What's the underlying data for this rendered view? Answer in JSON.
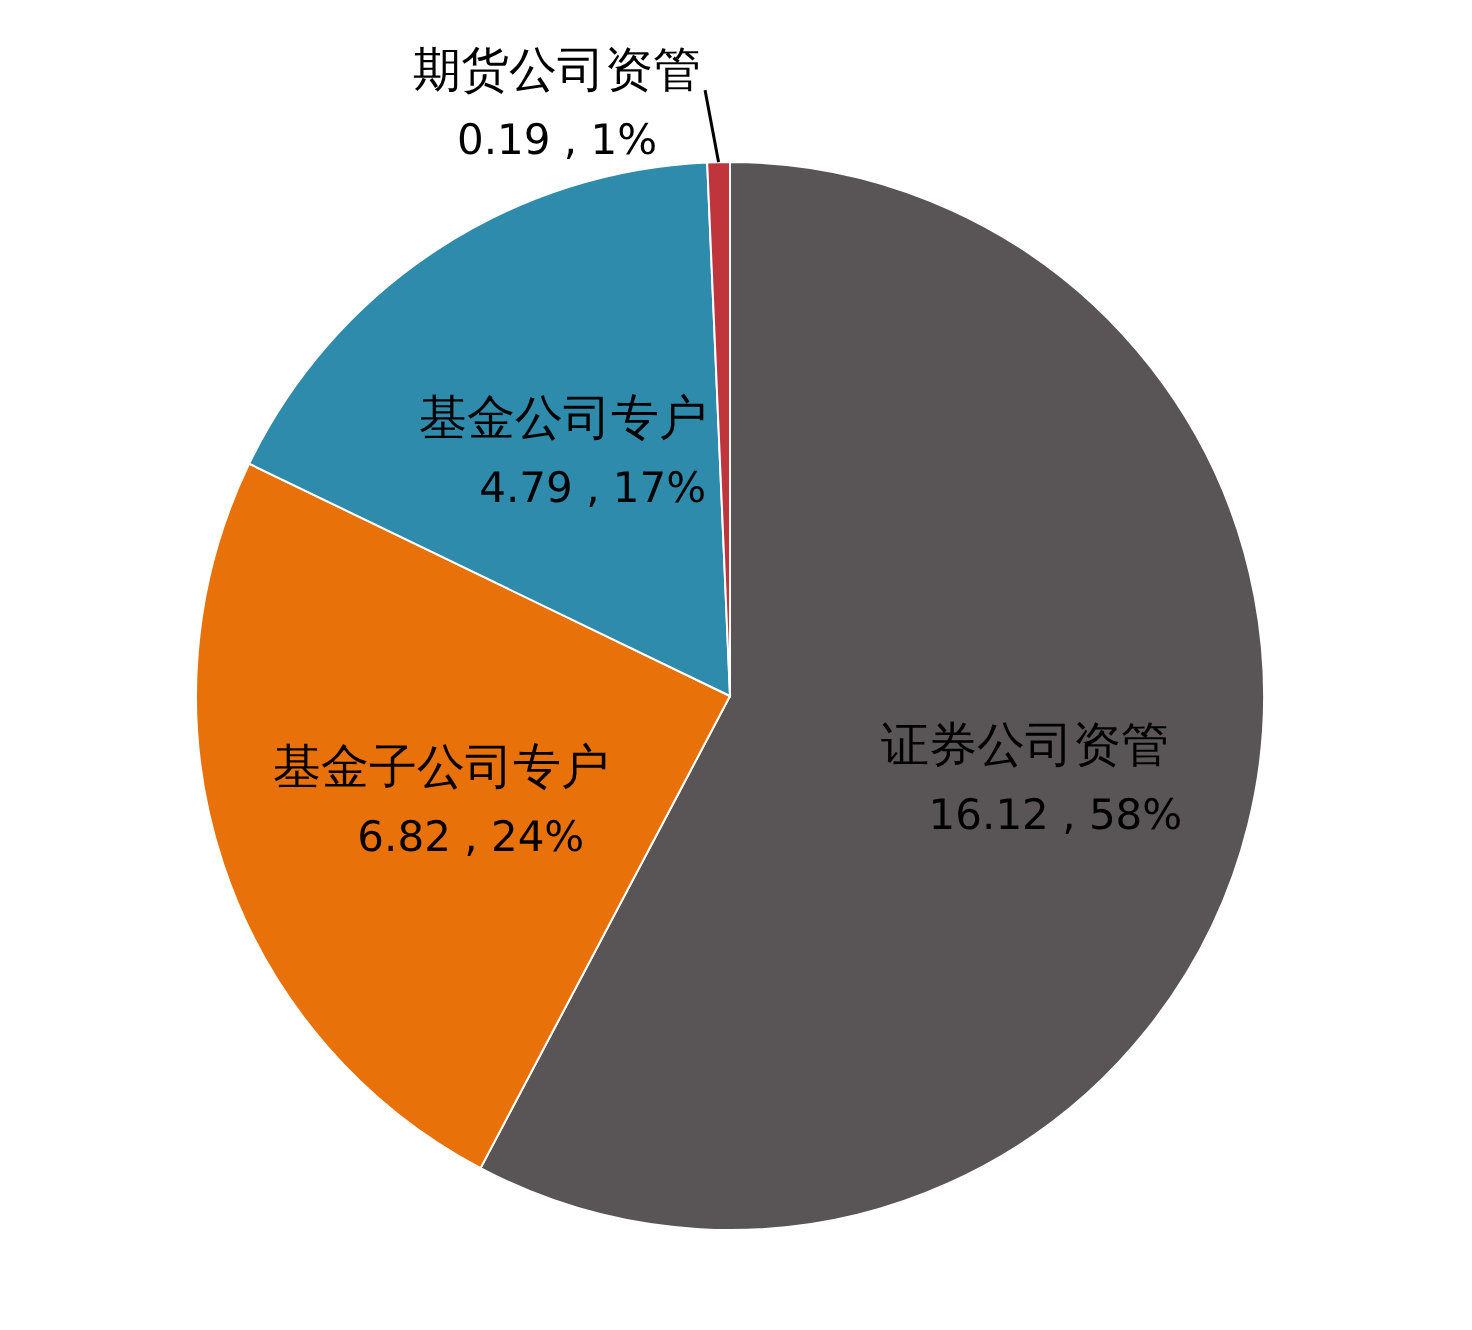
{
  "chart_data": {
    "type": "pie",
    "categories": [
      "证券公司资管",
      "基金子公司专户",
      "基金公司专户",
      "期货公司资管"
    ],
    "values": [
      16.12,
      6.82,
      4.79,
      0.19
    ],
    "colors": [
      "#595556",
      "#e8710a",
      "#2e8bab",
      "#c0343c"
    ],
    "value_labels": [
      "16.12 , 58%",
      "6.82 , 24%",
      "4.79 , 17%",
      "0.19 , 1%"
    ]
  }
}
